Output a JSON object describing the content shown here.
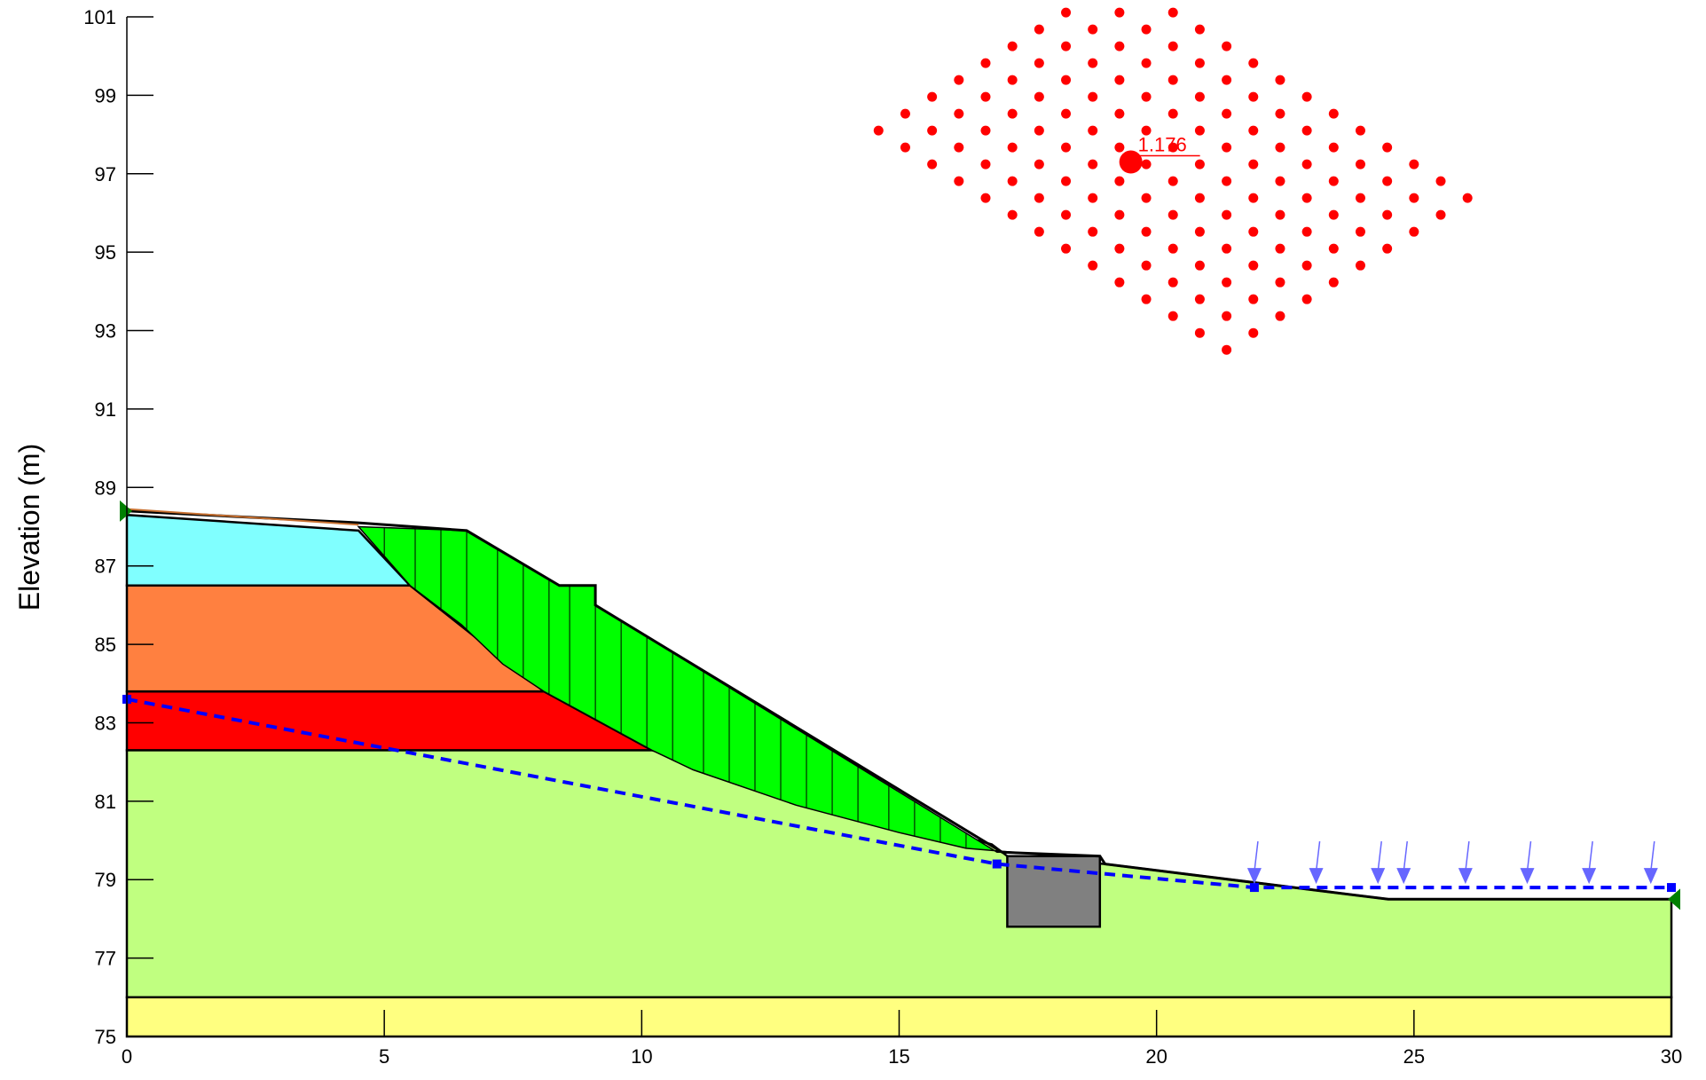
{
  "axes": {
    "x_ticks": [
      "0",
      "5",
      "10",
      "15",
      "20",
      "25",
      "30"
    ],
    "y_ticks": [
      "75",
      "77",
      "79",
      "81",
      "83",
      "85",
      "87",
      "89",
      "91",
      "93",
      "95",
      "97",
      "99",
      "101"
    ],
    "y_title": "Elevation (m)",
    "x_range": [
      0,
      30
    ],
    "y_range": [
      75,
      101
    ]
  },
  "critical_surface": {
    "factor_of_safety": "1.176",
    "center": [
      19.5,
      97.3
    ]
  },
  "colors": {
    "layer_cyan": "#80ffff",
    "layer_orange": "#ff8040",
    "layer_red": "#ff0000",
    "layer_lightgreen": "#c0ff80",
    "layer_yellow": "#ffff80",
    "sliding_mass": "#00ff00",
    "wall": "#808080",
    "water_table": "#0000ff",
    "load_arrow": "#6666ff",
    "grid_points": "#ff0000",
    "supports": "#008000"
  },
  "chart_data": {
    "type": "slope-stability-section",
    "ylabel": "Elevation (m)",
    "xlim": [
      0,
      30
    ],
    "ylim": [
      75,
      101
    ],
    "grid": false,
    "layers": [
      {
        "color": "#ffff80",
        "polygon": [
          [
            0,
            75
          ],
          [
            30,
            75
          ],
          [
            30,
            76
          ],
          [
            0,
            76
          ]
        ]
      },
      {
        "color": "#c0ff80",
        "polygon": [
          [
            0,
            76
          ],
          [
            30,
            76
          ],
          [
            30,
            78.5
          ],
          [
            24.5,
            78.5
          ],
          [
            19,
            79.4
          ],
          [
            17.1,
            79.6
          ],
          [
            16.8,
            79.9
          ],
          [
            10.2,
            82.3
          ],
          [
            0,
            82.3
          ]
        ]
      },
      {
        "color": "#ff0000",
        "polygon": [
          [
            0,
            82.3
          ],
          [
            10.2,
            82.3
          ],
          [
            8.1,
            83.8
          ],
          [
            0,
            83.8
          ]
        ]
      },
      {
        "color": "#ff8040",
        "polygon": [
          [
            0,
            83.8
          ],
          [
            8.1,
            83.8
          ],
          [
            5.5,
            86.5
          ],
          [
            0,
            86.5
          ]
        ]
      },
      {
        "color": "#80ffff",
        "polygon": [
          [
            0,
            86.5
          ],
          [
            5.5,
            86.5
          ],
          [
            4.5,
            87.9
          ],
          [
            0,
            88.3
          ]
        ]
      }
    ],
    "ground_surface": [
      [
        0,
        88.4
      ],
      [
        4.5,
        88.1
      ],
      [
        6.6,
        87.9
      ],
      [
        8.4,
        86.5
      ],
      [
        9.1,
        86.5
      ],
      [
        9.1,
        86.0
      ],
      [
        17.0,
        79.7
      ],
      [
        18.9,
        79.6
      ],
      [
        19.0,
        79.4
      ],
      [
        24.5,
        78.5
      ],
      [
        30,
        78.5
      ]
    ],
    "sliding_mass": [
      [
        4.5,
        88.0
      ],
      [
        6.6,
        87.9
      ],
      [
        8.4,
        86.5
      ],
      [
        9.1,
        86.5
      ],
      [
        9.1,
        86.0
      ],
      [
        16.9,
        79.7
      ],
      [
        17.2,
        79.7
      ],
      [
        16.3,
        79.8
      ],
      [
        15.0,
        80.2
      ],
      [
        13.0,
        80.9
      ],
      [
        11.0,
        81.8
      ],
      [
        10.2,
        82.3
      ],
      [
        8.1,
        83.8
      ],
      [
        7.3,
        84.5
      ],
      [
        6.5,
        85.5
      ],
      [
        5.5,
        86.5
      ]
    ],
    "slice_x": [
      5.0,
      5.6,
      6.1,
      6.6,
      7.2,
      7.7,
      8.2,
      8.6,
      9.1,
      9.6,
      10.1,
      10.6,
      11.2,
      11.7,
      12.2,
      12.7,
      13.2,
      13.7,
      14.2,
      14.8,
      15.3,
      15.8,
      16.3
    ],
    "wall": [
      [
        17.1,
        77.8
      ],
      [
        18.9,
        77.8
      ],
      [
        18.9,
        79.6
      ],
      [
        17.1,
        79.6
      ]
    ],
    "water_table": [
      [
        0,
        83.6
      ],
      [
        16.9,
        79.4
      ],
      [
        21.9,
        78.8
      ],
      [
        30,
        78.8
      ]
    ],
    "load_arrows_x": [
      21.9,
      23.1,
      24.3,
      24.8,
      26.0,
      27.2,
      28.4,
      29.6
    ],
    "support_points": [
      [
        0,
        88.4
      ],
      [
        30,
        78.5
      ]
    ],
    "grid_centers": {
      "origin": [
        14.6,
        98.1
      ],
      "step_a": [
        0.52,
        -0.43
      ],
      "step_b": [
        0.52,
        0.43
      ],
      "rows": 14,
      "cols": 10
    }
  }
}
